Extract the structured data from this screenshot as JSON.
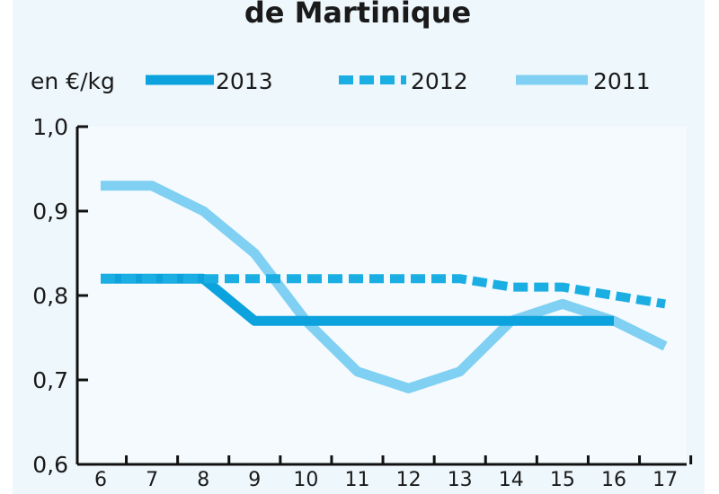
{
  "chart_data": {
    "type": "line",
    "title": "de Martinique",
    "unit": "en €/kg",
    "x": [
      6,
      7,
      8,
      9,
      10,
      11,
      12,
      13,
      14,
      15,
      16,
      17
    ],
    "ylim": [
      0.6,
      1.0
    ],
    "yticks": [
      "0,6",
      "0,7",
      "0,8",
      "0,9",
      "1,0"
    ],
    "ytick_values": [
      0.6,
      0.7,
      0.8,
      0.9,
      1.0
    ],
    "legend_position": "top",
    "grid": false,
    "series": [
      {
        "name": "2013",
        "values": [
          0.82,
          0.82,
          0.82,
          0.77,
          0.77,
          0.77,
          0.77,
          0.77,
          0.77,
          0.77,
          0.77,
          null
        ],
        "color": "#0ba2dd",
        "style": "solid"
      },
      {
        "name": "2012",
        "values": [
          0.82,
          0.82,
          0.82,
          0.82,
          0.82,
          0.82,
          0.82,
          0.82,
          0.81,
          0.81,
          0.8,
          0.79
        ],
        "color": "#1aaee3",
        "style": "dashed"
      },
      {
        "name": "2011",
        "values": [
          0.93,
          0.93,
          0.9,
          0.85,
          0.77,
          0.71,
          0.69,
          0.71,
          0.77,
          0.79,
          0.77,
          0.74
        ],
        "color": "#7fd0f2",
        "style": "solid"
      }
    ]
  }
}
